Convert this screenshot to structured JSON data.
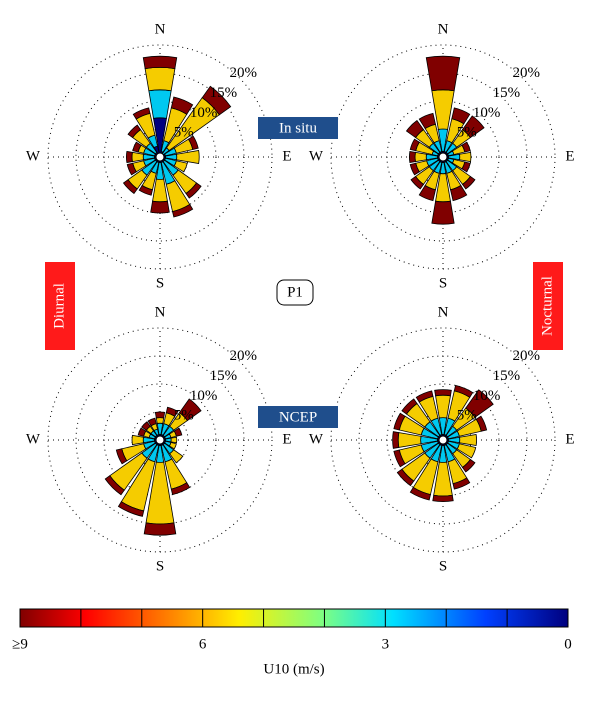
{
  "chart_data": [
    {
      "type": "windrose",
      "compass": [
        "N",
        "E",
        "S",
        "W"
      ],
      "rlim": [
        0,
        20
      ],
      "rticks": [
        {
          "value": 5,
          "label": "5%"
        },
        {
          "value": 10,
          "label": "10%"
        },
        {
          "value": 15,
          "label": "15%"
        },
        {
          "value": 20,
          "label": "20%"
        }
      ],
      "series": [
        {
          "color": "#00007f",
          "values": [
            7,
            1,
            0.5,
            1,
            1,
            1,
            1,
            1,
            1,
            1,
            1,
            1,
            1,
            1,
            1,
            2
          ]
        },
        {
          "color": "#00c8f0",
          "values": [
            5,
            2,
            1.5,
            2,
            2,
            2,
            3,
            4,
            3,
            2,
            3,
            2,
            2,
            2,
            2,
            2
          ]
        },
        {
          "color": "#f5cc00",
          "values": [
            4,
            6,
            11,
            3,
            4,
            2,
            4,
            5,
            4,
            3,
            3,
            2,
            2,
            1,
            3,
            4
          ]
        },
        {
          "color": "#800000",
          "values": [
            2,
            2,
            2.5,
            1,
            0,
            0,
            1,
            1,
            2,
            1,
            1,
            1,
            1,
            1,
            1,
            1
          ]
        }
      ]
    },
    {
      "type": "windrose",
      "compass": [
        "N",
        "E",
        "S",
        "W"
      ],
      "rlim": [
        0,
        20
      ],
      "rticks": [
        {
          "value": 5,
          "label": "5%"
        },
        {
          "value": 10,
          "label": "10%"
        },
        {
          "value": 15,
          "label": "15%"
        },
        {
          "value": 20,
          "label": "20%"
        }
      ],
      "series": [
        {
          "color": "#00007f",
          "values": [
            1,
            1,
            1,
            1,
            1,
            1,
            1,
            1,
            1,
            1,
            1,
            1,
            1,
            1,
            1,
            1
          ]
        },
        {
          "color": "#00c8f0",
          "values": [
            4,
            2,
            2,
            1,
            2,
            1,
            2,
            2,
            2,
            2,
            2,
            2,
            2,
            1,
            2,
            2
          ]
        },
        {
          "color": "#f5cc00",
          "values": [
            7,
            4,
            3,
            2,
            2,
            2,
            3,
            3,
            5,
            3,
            3,
            2,
            2,
            3,
            3,
            3
          ]
        },
        {
          "color": "#800000",
          "values": [
            6,
            2,
            3,
            1,
            0,
            1,
            1,
            2,
            4,
            2,
            1,
            1,
            1,
            1,
            2,
            2
          ]
        }
      ]
    },
    {
      "type": "windrose",
      "compass": [
        "N",
        "E",
        "S",
        "W"
      ],
      "rlim": [
        0,
        20
      ],
      "rticks": [
        {
          "value": 5,
          "label": "5%"
        },
        {
          "value": 10,
          "label": "10%"
        },
        {
          "value": 15,
          "label": "15%"
        },
        {
          "value": 20,
          "label": "20%"
        }
      ],
      "series": [
        {
          "color": "#00007f",
          "values": [
            1,
            1,
            1,
            1,
            1,
            1,
            1,
            1,
            1,
            1,
            1,
            1,
            1,
            1,
            1,
            1
          ]
        },
        {
          "color": "#00c8f0",
          "values": [
            2,
            2,
            2,
            1,
            1,
            1,
            2,
            3,
            3,
            3,
            3,
            2,
            2,
            1,
            1,
            1
          ]
        },
        {
          "color": "#f5cc00",
          "values": [
            1,
            2,
            3,
            1,
            1,
            1,
            2,
            5,
            11,
            9,
            7,
            4,
            2,
            1,
            1,
            1
          ]
        },
        {
          "color": "#800000",
          "values": [
            1,
            1,
            3,
            1,
            0,
            0,
            0,
            1,
            2,
            1,
            1,
            1,
            0,
            1,
            1,
            1
          ]
        }
      ]
    },
    {
      "type": "windrose",
      "compass": [
        "N",
        "E",
        "S",
        "W"
      ],
      "rlim": [
        0,
        20
      ],
      "rticks": [
        {
          "value": 5,
          "label": "5%"
        },
        {
          "value": 10,
          "label": "10%"
        },
        {
          "value": 15,
          "label": "15%"
        },
        {
          "value": 20,
          "label": "20%"
        }
      ],
      "series": [
        {
          "color": "#00007f",
          "values": [
            1,
            1,
            1,
            1,
            1,
            1,
            1,
            1,
            1,
            1,
            1,
            1,
            1,
            1,
            1,
            1
          ]
        },
        {
          "color": "#00c8f0",
          "values": [
            3,
            3,
            2,
            2,
            2,
            2,
            2,
            3,
            3,
            3,
            3,
            3,
            3,
            3,
            3,
            3
          ]
        },
        {
          "color": "#f5cc00",
          "values": [
            4,
            5,
            4,
            4,
            3,
            3,
            3,
            4,
            6,
            6,
            5,
            4,
            4,
            4,
            4,
            4
          ]
        },
        {
          "color": "#800000",
          "values": [
            1,
            1,
            4,
            1,
            0,
            0,
            1,
            1,
            1,
            1,
            1,
            1,
            1,
            1,
            1,
            1
          ]
        }
      ]
    },
    {
      "type": "colorbar",
      "xlim": [
        9,
        0
      ],
      "xticks": [
        {
          "value": 9,
          "label": "≥9"
        },
        6,
        3,
        0
      ],
      "minor_ticks": [
        8,
        7,
        5,
        4,
        2,
        1
      ],
      "xlabel": "U10 (m/s)"
    }
  ],
  "labels": {
    "in_situ": "In situ",
    "ncep": "NCEP",
    "station": "P1",
    "diurnal": "Diurnal",
    "nocturnal": "Nocturnal"
  }
}
